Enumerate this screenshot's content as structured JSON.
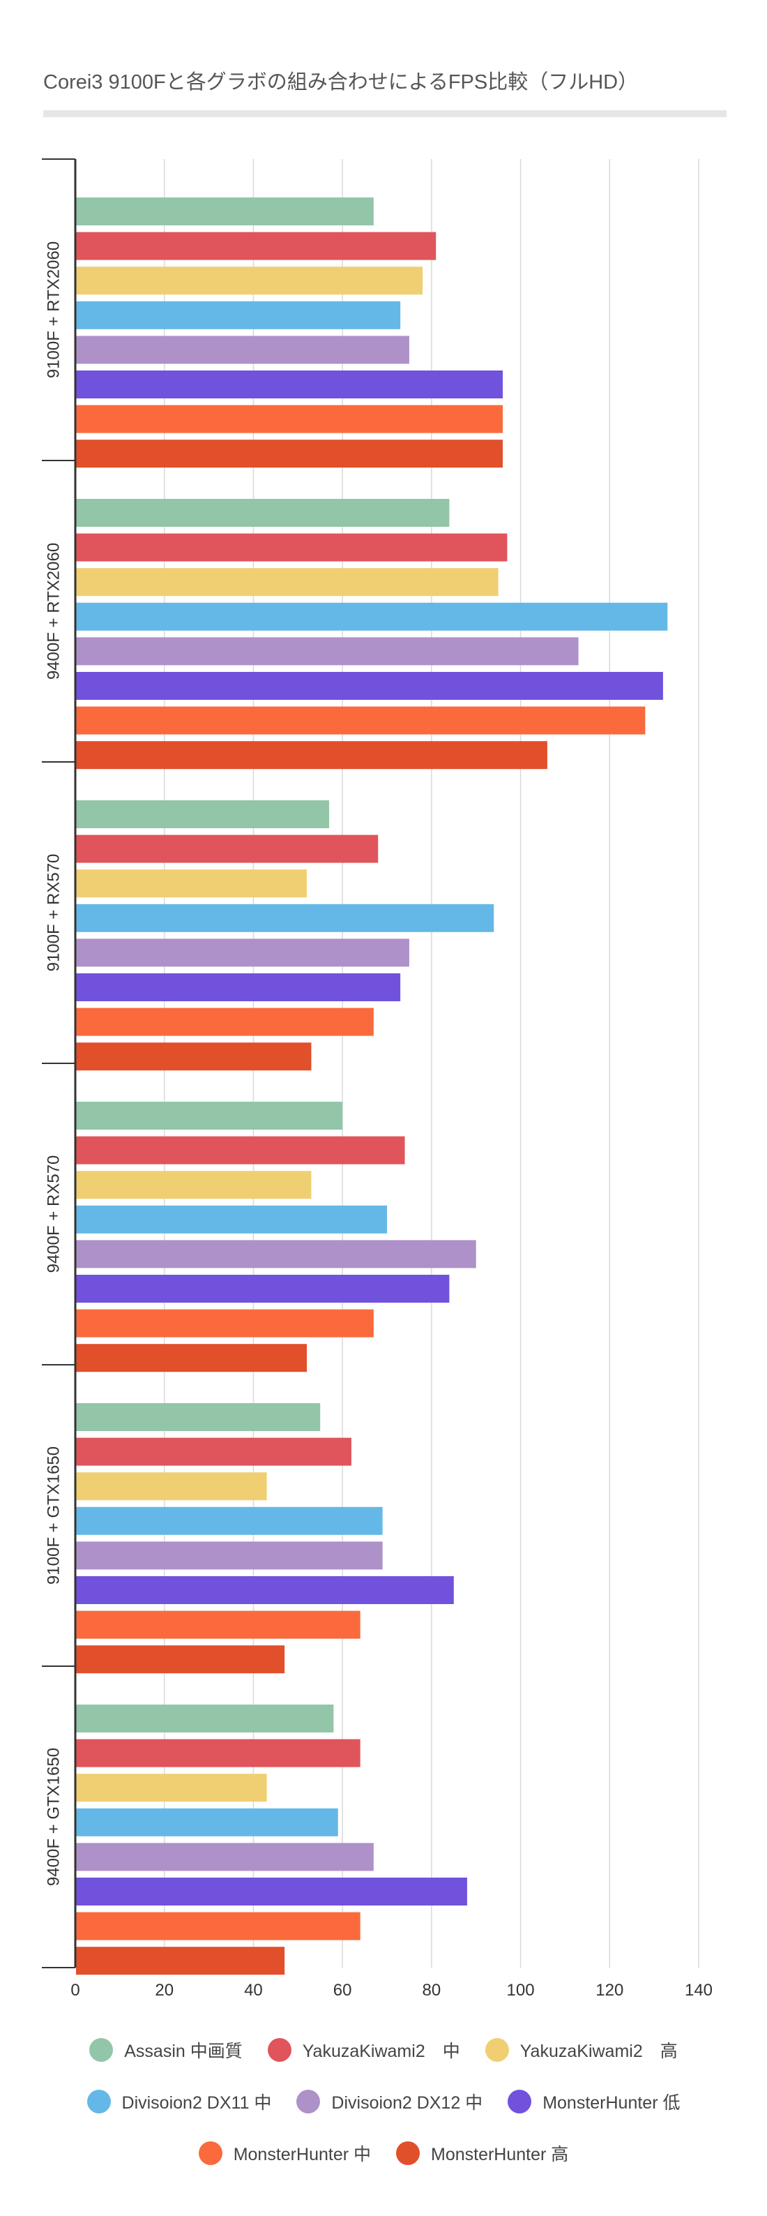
{
  "header": {
    "title": "Corei3 9100Fと各グラボの組み合わせによるFPS比較（フルHD）"
  },
  "chart_data": {
    "type": "bar",
    "orientation": "horizontal",
    "title": "Corei3 9100Fと各グラボの組み合わせによるFPS比較（フルHD）",
    "xlabel": "",
    "ylabel": "",
    "xlim": [
      0,
      140
    ],
    "xticks": [
      0,
      20,
      40,
      60,
      80,
      100,
      120,
      140
    ],
    "grid": true,
    "legend_position": "bottom",
    "categories": [
      "9100F + RTX2060",
      "9400F + RTX2060",
      "9100F + RX570",
      "9400F + RX570",
      "9100F + GTX1650",
      "9400F + GTX1650"
    ],
    "series": [
      {
        "name": "Assasin 中画質",
        "color": "#93c5a8",
        "values": [
          67,
          84,
          57,
          60,
          55,
          58
        ]
      },
      {
        "name": "YakuzaKiwami2　中",
        "color": "#df555b",
        "values": [
          81,
          97,
          68,
          74,
          62,
          64
        ]
      },
      {
        "name": "YakuzaKiwami2　高",
        "color": "#f0cf73",
        "values": [
          78,
          95,
          52,
          53,
          43,
          43
        ]
      },
      {
        "name": "Divisoion2 DX11 中",
        "color": "#64b8e7",
        "values": [
          73,
          133,
          94,
          70,
          69,
          59
        ]
      },
      {
        "name": "Divisoion2 DX12 中",
        "color": "#ae91c9",
        "values": [
          75,
          113,
          75,
          90,
          69,
          67
        ]
      },
      {
        "name": "MonsterHunter 低",
        "color": "#7052dd",
        "values": [
          96,
          132,
          73,
          84,
          85,
          88
        ]
      },
      {
        "name": "MonsterHunter 中",
        "color": "#fb6a3c",
        "values": [
          96,
          128,
          67,
          67,
          64,
          64
        ]
      },
      {
        "name": "MonsterHunter 高",
        "color": "#e24f2b",
        "values": [
          96,
          106,
          53,
          52,
          47,
          47
        ]
      }
    ]
  }
}
